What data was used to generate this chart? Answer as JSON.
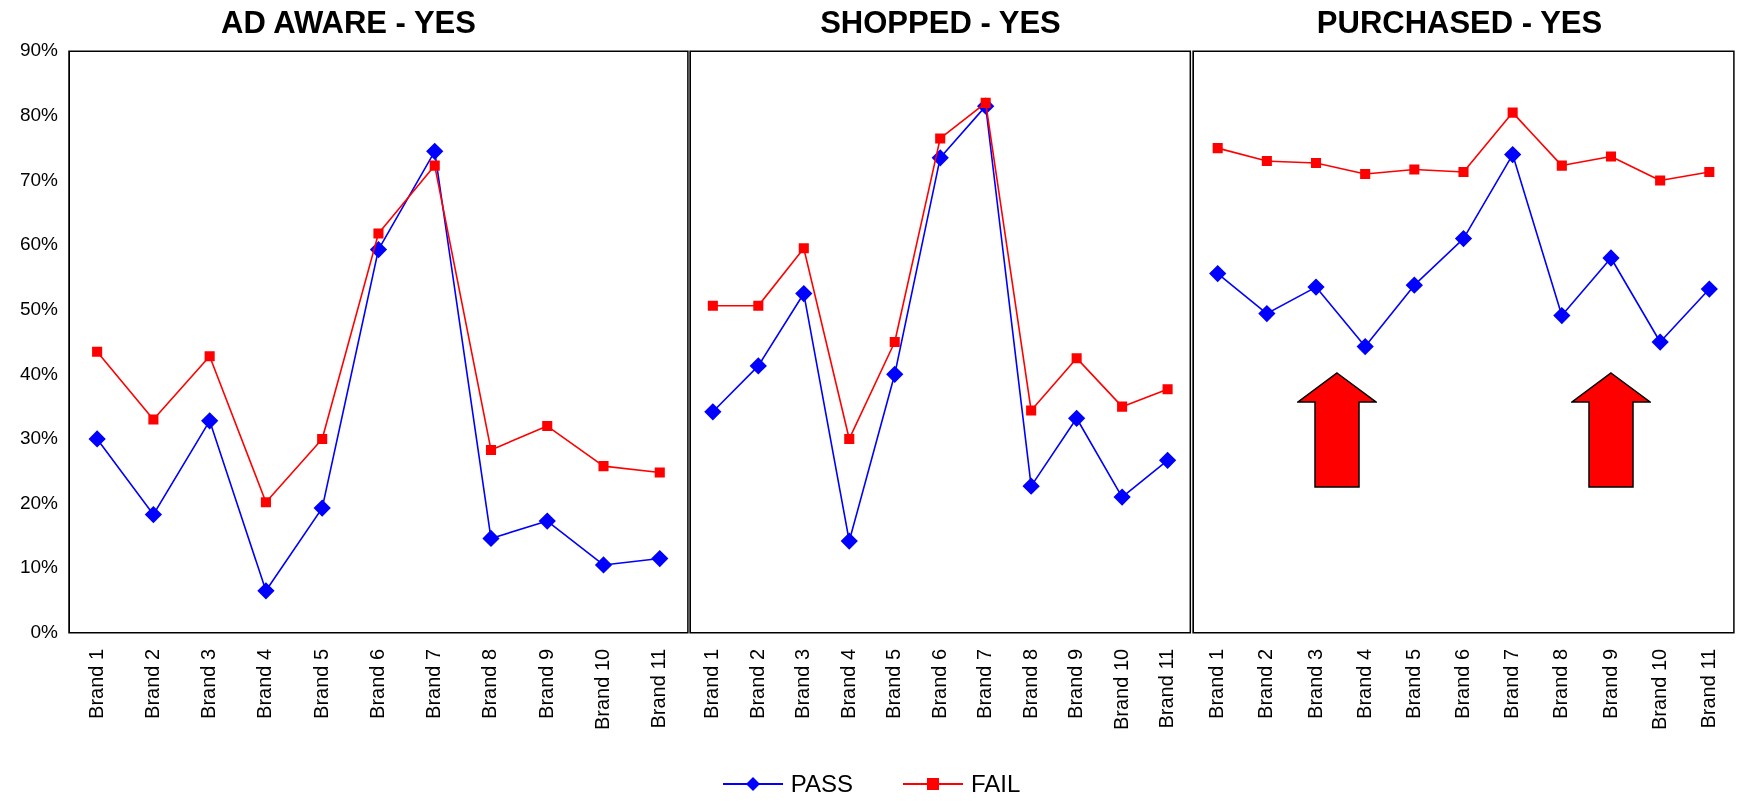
{
  "chart_data": [
    {
      "type": "line",
      "title": "AD AWARE - YES",
      "categories": [
        "Brand 1",
        "Brand 2",
        "Brand 3",
        "Brand 4",
        "Brand 5",
        "Brand 6",
        "Brand 7",
        "Brand 8",
        "Brand 9",
        "Brand 10",
        "Brand 11"
      ],
      "ylim": [
        0,
        90
      ],
      "yticks": [
        {
          "value": 0,
          "label": "0%"
        },
        {
          "value": 10,
          "label": "10%"
        },
        {
          "value": 20,
          "label": "20%"
        },
        {
          "value": 30,
          "label": "30%"
        },
        {
          "value": 40,
          "label": "40%"
        },
        {
          "value": 50,
          "label": "50%"
        },
        {
          "value": 60,
          "label": "60%"
        },
        {
          "value": 70,
          "label": "70%"
        },
        {
          "value": 80,
          "label": "80%"
        },
        {
          "value": 90,
          "label": "90%"
        }
      ],
      "grid": false,
      "legend": "bottom",
      "line_style": "solid",
      "series": [
        {
          "name": "PASS",
          "color": "#0000ff",
          "marker": "diamond",
          "values": [
            30,
            18.3,
            32.8,
            6.5,
            19.3,
            59.3,
            74.5,
            14.6,
            17.3,
            10.5,
            11.5
          ]
        },
        {
          "name": "FAIL",
          "color": "#ff0000",
          "marker": "square",
          "values": [
            43.5,
            33,
            42.8,
            20.2,
            30,
            61.8,
            72.3,
            28.3,
            32,
            25.8,
            24.8
          ]
        }
      ]
    },
    {
      "type": "line",
      "title": "SHOPPED - YES",
      "categories": [
        "Brand 1",
        "Brand 2",
        "Brand 3",
        "Brand 4",
        "Brand 5",
        "Brand 6",
        "Brand 7",
        "Brand 8",
        "Brand 9",
        "Brand 10",
        "Brand 11"
      ],
      "ylim": [
        0,
        90
      ],
      "tick_labels": "x",
      "grid": false,
      "legend": "bottom",
      "line_style": "solid",
      "series": [
        {
          "name": "PASS",
          "color": "#0000ff",
          "marker": "diamond",
          "values": [
            34.2,
            41.3,
            52.5,
            14.2,
            40,
            73.5,
            81.5,
            22.7,
            33.2,
            21,
            26.7
          ]
        },
        {
          "name": "FAIL",
          "color": "#ff0000",
          "marker": "square",
          "values": [
            50.6,
            50.6,
            59.5,
            30,
            45,
            76.5,
            82,
            34.4,
            42.5,
            35,
            37.7
          ]
        }
      ]
    },
    {
      "type": "line",
      "title": "PURCHASED - YES",
      "categories": [
        "Brand 1",
        "Brand 2",
        "Brand 3",
        "Brand 4",
        "Brand 5",
        "Brand 6",
        "Brand 7",
        "Brand 8",
        "Brand 9",
        "Brand 10",
        "Brand 11"
      ],
      "ylim": [
        0,
        90
      ],
      "tick_labels": "x",
      "grid": false,
      "legend": "bottom",
      "line_style": "solid",
      "series": [
        {
          "name": "PASS",
          "color": "#0000ff",
          "marker": "diamond",
          "values": [
            55.6,
            49.4,
            53.5,
            44.3,
            53.8,
            61,
            74,
            49.1,
            58,
            45,
            53.2
          ]
        },
        {
          "name": "FAIL",
          "color": "#ff0000",
          "marker": "square",
          "values": [
            75,
            73,
            72.7,
            71,
            71.7,
            71.3,
            80.5,
            72.3,
            73.7,
            70,
            71.3
          ]
        }
      ]
    }
  ]
}
